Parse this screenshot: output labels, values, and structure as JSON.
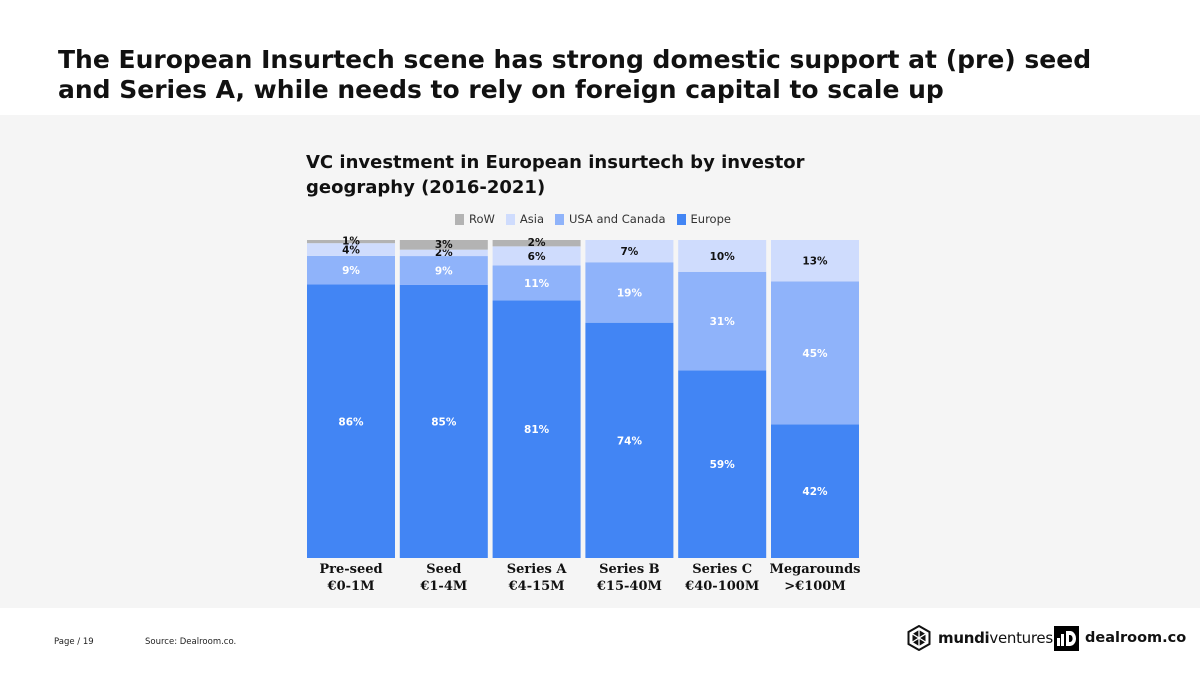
{
  "slide": {
    "title": "The European Insurtech scene has strong domestic support at (pre) seed and Series A, while needs to rely on foreign capital to scale up"
  },
  "footer": {
    "page_label": "Page / 19",
    "source": "Source: Dealroom.co."
  },
  "logos": {
    "mundi_bold": "mundi",
    "mundi_regular": "ventures",
    "dealroom": "dealroom.co"
  },
  "colors": {
    "row": "#b3b3b3",
    "asia": "#cfdcfd",
    "usa_canada": "#8fb3fa",
    "europe": "#4285f4",
    "panel": "#f5f5f5"
  },
  "chart_data": {
    "type": "bar",
    "stacked": true,
    "normalized": true,
    "title": "VC investment in European insurtech by investor geography (2016-2021)",
    "legend_position": "top",
    "categories": [
      [
        "Pre-seed",
        "€0-1M"
      ],
      [
        "Seed",
        "€1-4M"
      ],
      [
        "Series A",
        "€4-15M"
      ],
      [
        "Series B",
        "€15-40M"
      ],
      [
        "Series C",
        "€40-100M"
      ],
      [
        "Megarounds",
        ">€100M"
      ]
    ],
    "series": [
      {
        "name": "Europe",
        "color": "#4285f4",
        "label_color": "#ffffff",
        "values": [
          86,
          85,
          81,
          74,
          59,
          42
        ]
      },
      {
        "name": "USA and Canada",
        "color": "#8fb3fa",
        "label_color": "#ffffff",
        "values": [
          9,
          9,
          11,
          19,
          31,
          45
        ]
      },
      {
        "name": "Asia",
        "color": "#cfdcfd",
        "label_color": "#111111",
        "values": [
          4,
          2,
          6,
          7,
          10,
          13
        ]
      },
      {
        "name": "RoW",
        "color": "#b3b3b3",
        "label_color": "#111111",
        "values": [
          1,
          3,
          2,
          0,
          0,
          0
        ]
      }
    ],
    "legend_order": [
      "RoW",
      "Asia",
      "USA and Canada",
      "Europe"
    ],
    "ylim": [
      0,
      100
    ]
  }
}
